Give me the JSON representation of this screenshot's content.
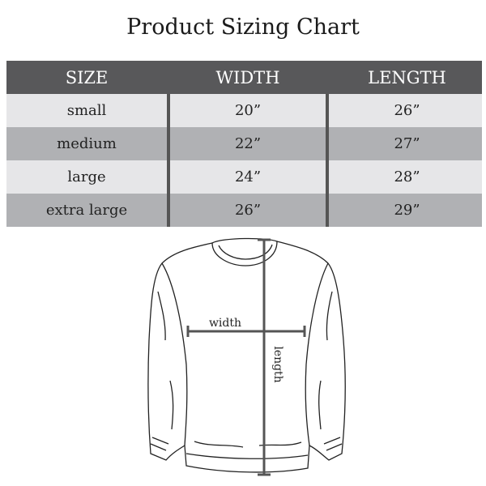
{
  "title": "Product Sizing Chart",
  "table": {
    "headers": [
      "SIZE",
      "WIDTH",
      "LENGTH"
    ],
    "rows": [
      {
        "size": "small",
        "width": "20”",
        "length": "26”"
      },
      {
        "size": "medium",
        "width": "22”",
        "length": "27”"
      },
      {
        "size": "large",
        "width": "24”",
        "length": "28”"
      },
      {
        "size": "extra large",
        "width": "26”",
        "length": "29”"
      }
    ]
  },
  "diagram": {
    "width_label": "width",
    "length_label": "length"
  },
  "colors": {
    "header": "#58585a",
    "row_light": "#e6e6e8",
    "row_dark": "#b0b1b4",
    "divider": "#555555"
  }
}
